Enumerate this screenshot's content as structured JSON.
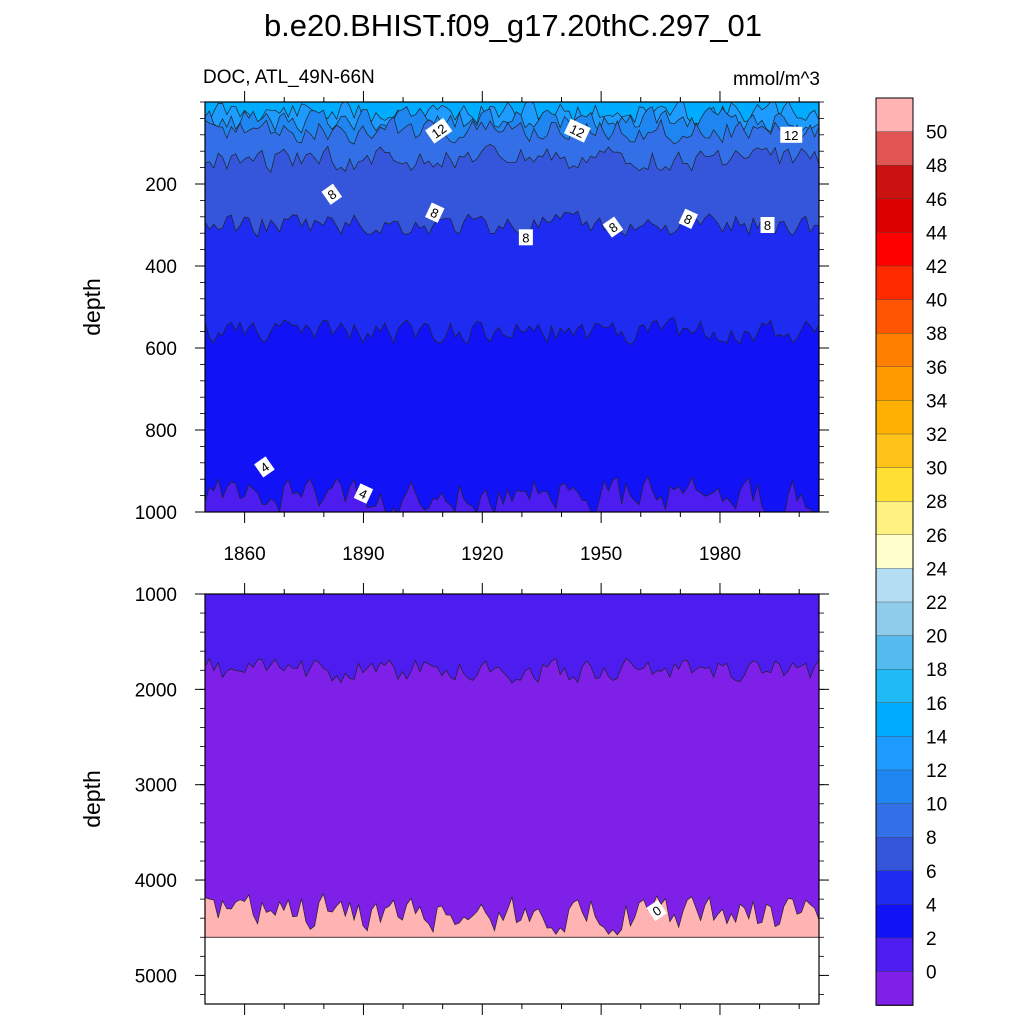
{
  "figure": {
    "title": "b.e20.BHIST.f09_g17.20thC.297_01",
    "left_subtitle": "DOC, ATL_49N-66N",
    "right_subtitle": "mmol/m^3"
  },
  "chart_data": [
    {
      "type": "heatmap",
      "panel": "upper",
      "ylabel": "depth",
      "ylim": [
        1000,
        0
      ],
      "y_ticks": [
        200,
        400,
        600,
        800,
        1000
      ],
      "xlim": [
        1850,
        2005
      ],
      "x_ticks": [
        1860,
        1890,
        1920,
        1950,
        1980
      ],
      "x_ticklabels": [
        "1860",
        "1890",
        "1920",
        "1950",
        "1980"
      ],
      "contour_labels": [
        {
          "text": "12",
          "year": 1909,
          "depth": 70
        },
        {
          "text": "12",
          "year": 1944,
          "depth": 70
        },
        {
          "text": "12",
          "year": 1998,
          "depth": 80
        },
        {
          "text": "8",
          "year": 1882,
          "depth": 225
        },
        {
          "text": "8",
          "year": 1908,
          "depth": 270
        },
        {
          "text": "8",
          "year": 1931,
          "depth": 330
        },
        {
          "text": "8",
          "year": 1953,
          "depth": 305
        },
        {
          "text": "8",
          "year": 1972,
          "depth": 285
        },
        {
          "text": "8",
          "year": 1992,
          "depth": 300
        },
        {
          "text": "4",
          "year": 1865,
          "depth": 890
        },
        {
          "text": "4",
          "year": 1890,
          "depth": 955
        }
      ],
      "approx_contour_depths": [
        {
          "level": 16,
          "depth": 25
        },
        {
          "level": 14,
          "depth": 45
        },
        {
          "level": 12,
          "depth": 70
        },
        {
          "level": 10,
          "depth": 140
        },
        {
          "level": 8,
          "depth": 300
        },
        {
          "level": 6,
          "depth": 560
        },
        {
          "level": 4,
          "depth": 960
        }
      ]
    },
    {
      "type": "heatmap",
      "panel": "lower",
      "ylabel": "depth",
      "ylim": [
        5300,
        1000
      ],
      "y_ticks": [
        1000,
        2000,
        3000,
        4000,
        5000
      ],
      "xlim": [
        1850,
        2005
      ],
      "seafloor_depth": 4600,
      "contour_labels": [
        {
          "text": "0",
          "year": 1964,
          "depth": 4320
        }
      ],
      "approx_contour_depths": [
        {
          "level": 2,
          "depth": 1800
        },
        {
          "level": 0,
          "depth": 4350
        }
      ]
    }
  ],
  "colorbar": {
    "labels": [
      "50",
      "48",
      "46",
      "44",
      "42",
      "40",
      "38",
      "36",
      "34",
      "32",
      "30",
      "28",
      "26",
      "24",
      "22",
      "20",
      "18",
      "16",
      "14",
      "12",
      "10",
      "8",
      "6",
      "4",
      "2",
      "0"
    ],
    "colors": [
      "#FFB3B3",
      "#E25555",
      "#CC1111",
      "#DD0000",
      "#FF0000",
      "#FF2A00",
      "#FF5500",
      "#FF7F00",
      "#FF9900",
      "#FFB000",
      "#FFC21A",
      "#FFE033",
      "#FFF17F",
      "#FFFFCC",
      "#B3DDF2",
      "#8FCCEB",
      "#55BBEE",
      "#1EBBF7",
      "#00ACFF",
      "#1D9BFF",
      "#1F85F0",
      "#3370E8",
      "#3556DA",
      "#1D2CF0",
      "#1212F7",
      "#4D1DEF",
      "#7F20E8"
    ]
  }
}
